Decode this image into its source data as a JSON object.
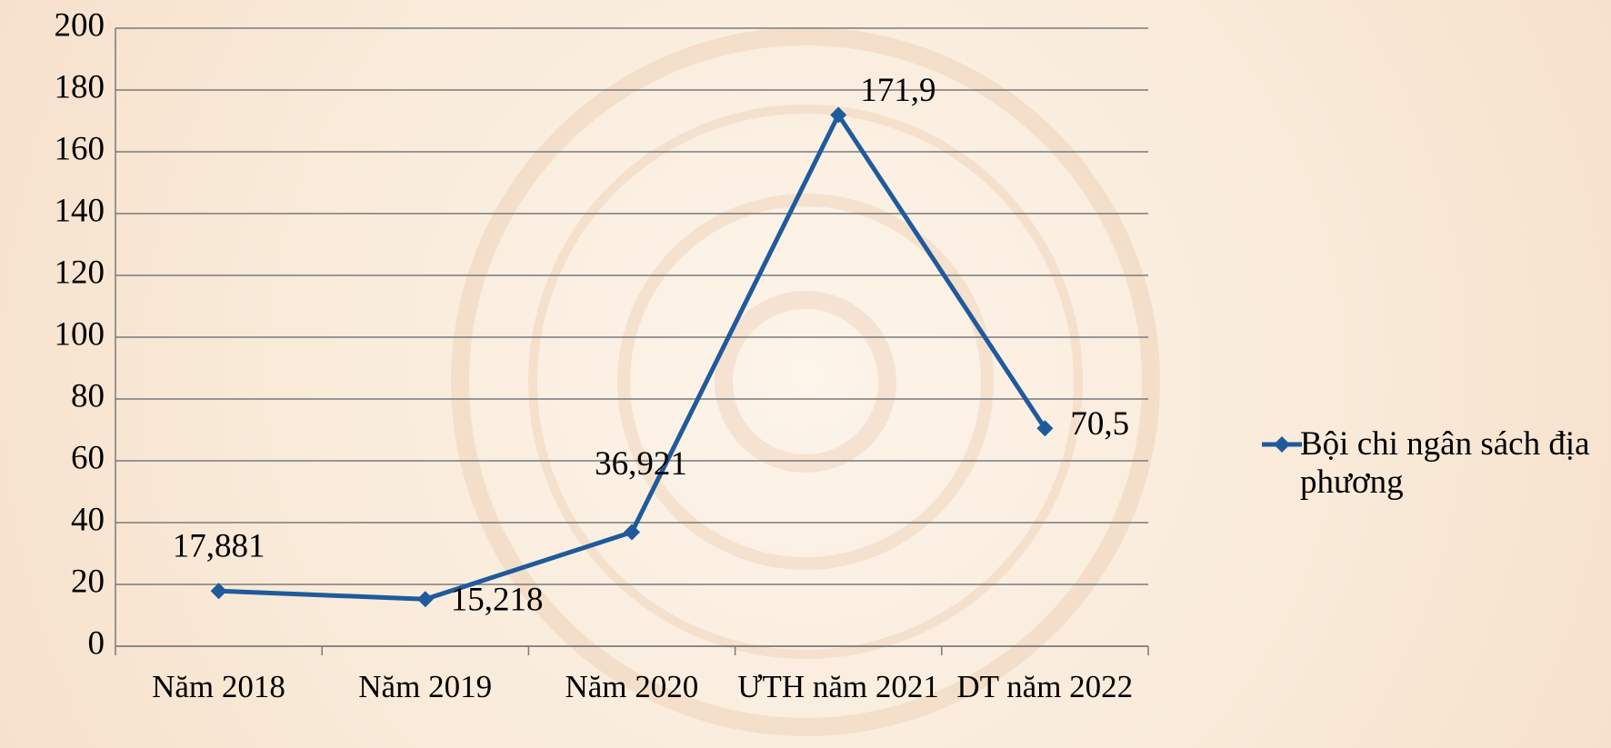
{
  "chart_data": {
    "type": "line",
    "categories": [
      "Năm 2018",
      "Năm 2019",
      "Năm 2020",
      "ƯTH năm 2021",
      "DT năm 2022"
    ],
    "series": [
      {
        "name": "Bội chi ngân sách địa phương",
        "color": "#1f5a9c",
        "values": [
          17.881,
          15.218,
          36.921,
          171.9,
          70.5
        ],
        "value_labels": [
          "17,881",
          "15,218",
          "36,921",
          "171,9",
          "70,5"
        ]
      }
    ],
    "ylim": [
      0,
      200
    ],
    "yticks": [
      0,
      20,
      40,
      60,
      80,
      100,
      120,
      140,
      160,
      180,
      200
    ],
    "grid": true,
    "legend": "right"
  }
}
